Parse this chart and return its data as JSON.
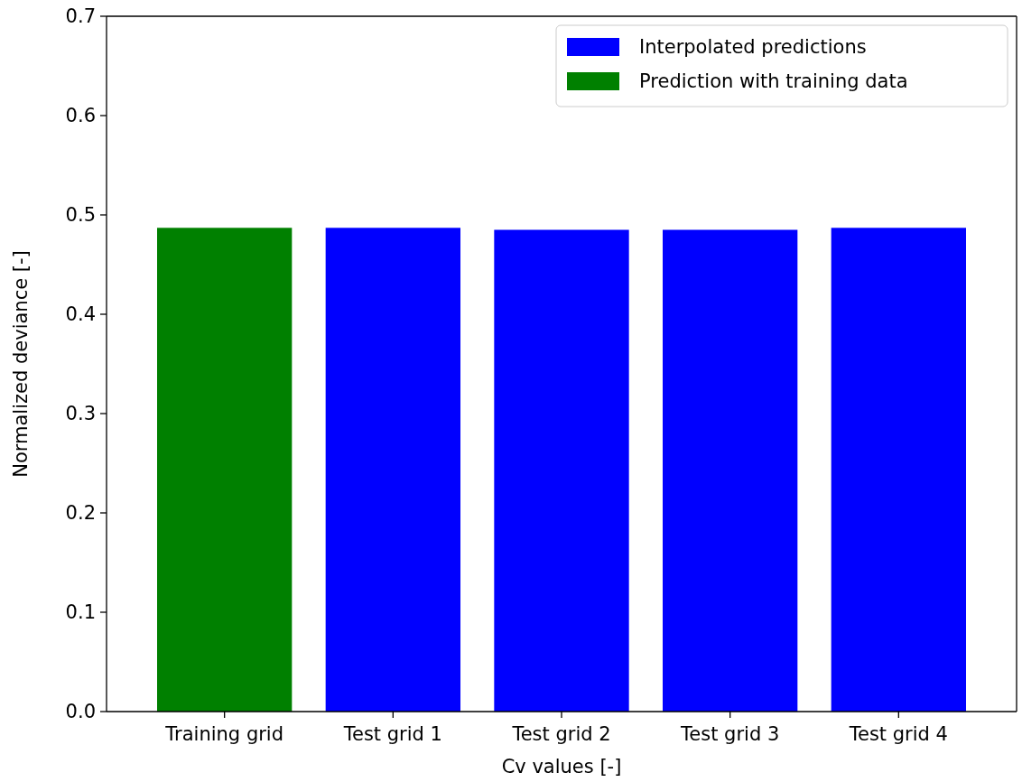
{
  "chart_data": {
    "type": "bar",
    "xlabel": "Cv values [-]",
    "ylabel": "Normalized deviance [-]",
    "categories": [
      "Training grid",
      "Test grid 1",
      "Test grid 2",
      "Test grid 3",
      "Test grid 4"
    ],
    "series": [
      {
        "name": "Interpolated predictions",
        "color": "#0000ff",
        "values": [
          null,
          0.487,
          0.485,
          0.485,
          0.487
        ]
      },
      {
        "name": "Prediction with training data",
        "color": "#008000",
        "values": [
          0.487,
          null,
          null,
          null,
          null
        ]
      }
    ],
    "ylim": [
      0,
      0.7
    ],
    "yticks": [
      {
        "value": 0,
        "label": "0.0"
      },
      0.1,
      0.2,
      0.3,
      0.4,
      0.5,
      0.6,
      0.7
    ],
    "grid": false,
    "legend": "top right"
  }
}
